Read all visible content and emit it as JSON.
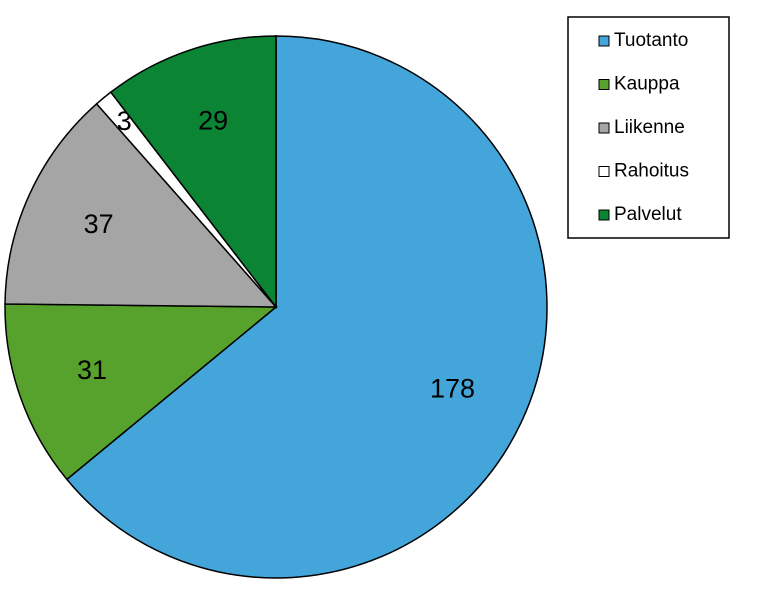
{
  "chart_data": {
    "type": "pie",
    "categories": [
      "Tuotanto",
      "Kauppa",
      "Liikenne",
      "Rahoitus",
      "Palvelut"
    ],
    "values": [
      178,
      31,
      37,
      3,
      29
    ],
    "colors": [
      "#43a5da",
      "#56a22c",
      "#a6a5a5",
      "#ffffff",
      "#0b8434"
    ],
    "legend": "top-right"
  }
}
